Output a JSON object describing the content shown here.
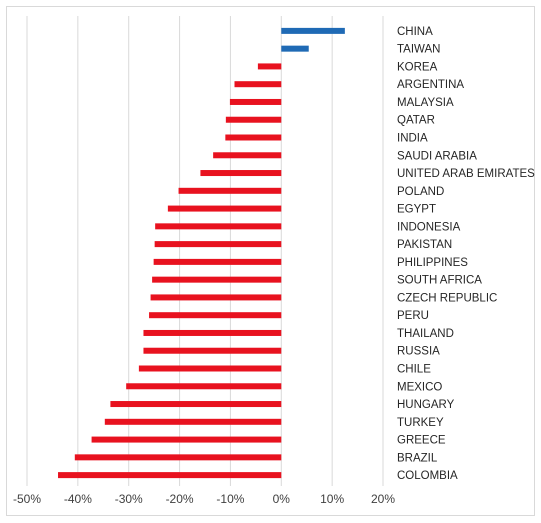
{
  "chart_data": {
    "type": "bar",
    "orientation": "horizontal",
    "categories": [
      "CHINA",
      "TAIWAN",
      "KOREA",
      "ARGENTINA",
      "MALAYSIA",
      "QATAR",
      "INDIA",
      "SAUDI ARABIA",
      "UNITED ARAB EMIRATES",
      "POLAND",
      "EGYPT",
      "INDONESIA",
      "PAKISTAN",
      "PHILIPPINES",
      "SOUTH AFRICA",
      "CZECH REPUBLIC",
      "PERU",
      "THAILAND",
      "RUSSIA",
      "CHILE",
      "MEXICO",
      "HUNGARY",
      "TURKEY",
      "GREECE",
      "BRAZIL",
      "COLOMBIA"
    ],
    "values": [
      12.5,
      5.4,
      -4.6,
      -9.2,
      -10.1,
      -10.9,
      -11.0,
      -13.4,
      -15.9,
      -20.2,
      -22.3,
      -24.8,
      -24.9,
      -25.1,
      -25.4,
      -25.7,
      -26.0,
      -27.1,
      -27.1,
      -28.0,
      -30.5,
      -33.6,
      -34.7,
      -37.3,
      -40.6,
      -43.9
    ],
    "xlim": [
      -50,
      20
    ],
    "xticks": [
      -50,
      -40,
      -30,
      -20,
      -10,
      0,
      10,
      20
    ],
    "tick_labels": [
      "-50%",
      "-40%",
      "-30%",
      "-20%",
      "-10%",
      "0%",
      "10%",
      "20%"
    ],
    "title": "",
    "xlabel": "",
    "ylabel": "",
    "grid": "vertical",
    "colors": {
      "positive": "#1f6ab5",
      "negative": "#e8121f",
      "grid": "#d9d9d9"
    }
  }
}
